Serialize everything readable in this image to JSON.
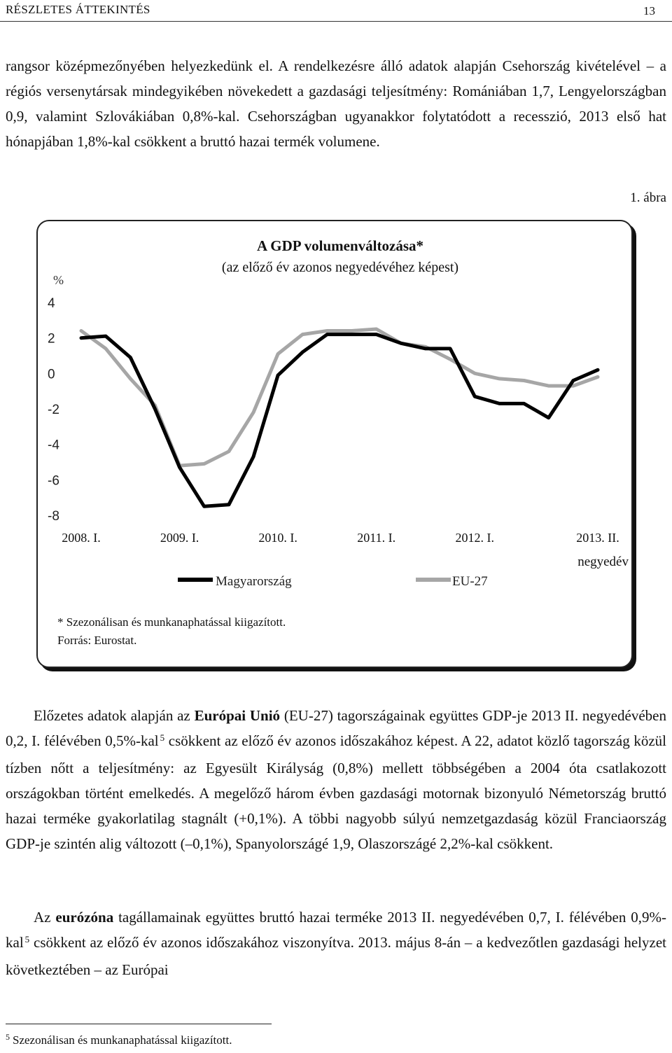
{
  "header": {
    "section": "RÉSZLETES ÁTTEKINTÉS",
    "page_number": "13"
  },
  "paragraph1": "rangsor középmezőnyében helyezkedünk el. A rendelkezésre álló adatok alapján Csehország kivételével – a régiós versenytársak mindegyikében növekedett a gazdasági teljesítmény: Romániában 1,7, Lengyelországban 0,9, valamint Szlovákiában 0,8%-kal. Csehországban ugyanakkor folytatódott a recesszió, 2013 első hat hónapjában 1,8%-kal csökkent a bruttó hazai termék volumene.",
  "figure_label": "1. ábra",
  "chart_data": {
    "type": "line",
    "title": "A GDP volumenváltozása*",
    "subtitle": "(az előző év azonos negyedévéhez képest)",
    "ylabel": "%",
    "xlabel": "negyedév",
    "ylim": [
      -8,
      4
    ],
    "yticks": [
      "4",
      "2",
      "0",
      "-2",
      "-4",
      "-6",
      "-8"
    ],
    "ytick_values": [
      4,
      2,
      0,
      -2,
      -4,
      -6,
      -8
    ],
    "x_tick_labels": [
      "2008. I.",
      "2009. I.",
      "2010. I.",
      "2011. I.",
      "2012. I.",
      "2013. II."
    ],
    "x_tick_indices": [
      0,
      4,
      8,
      12,
      16,
      21
    ],
    "n_points": 22,
    "series": [
      {
        "name": "Magyarország",
        "color": "#000000",
        "values": [
          2.0,
          2.1,
          0.9,
          -2.0,
          -5.3,
          -7.5,
          -7.4,
          -4.7,
          -0.1,
          1.2,
          2.2,
          2.2,
          2.2,
          1.7,
          1.4,
          1.4,
          -1.3,
          -1.7,
          -1.7,
          -2.5,
          -0.4,
          0.2
        ]
      },
      {
        "name": "EU-27",
        "color": "#a6a6a6",
        "values": [
          2.4,
          1.4,
          -0.3,
          -1.8,
          -5.2,
          -5.1,
          -4.4,
          -2.2,
          1.1,
          2.2,
          2.4,
          2.4,
          2.5,
          1.7,
          1.5,
          0.8,
          0.0,
          -0.3,
          -0.4,
          -0.7,
          -0.7,
          -0.2
        ]
      }
    ],
    "legend_position": "bottom",
    "notes": [
      "* Szezonálisan és munkanaphatással kiigazított.",
      "Forrás: Eurostat."
    ]
  },
  "paragraph2": {
    "part1": "Előzetes adatok alapján az ",
    "bold": "Európai Unió",
    "part2": " (EU-27) tagországainak együttes GDP-je 2013 II. negyedévében 0,2, I. félévében 0,5%-kal",
    "sup": "5",
    "part3": " csökkent az előző év azonos időszakához képest. A 22, adatot közlő tagország közül tízben nőtt a teljesítmény: az Egyesült Királyság (0,8%) mellett többségében a 2004 óta csatlakozott országokban történt emelkedés. A megelőző három évben gazdasági motornak bizonyuló Németország bruttó hazai terméke gyakorlatilag stagnált (+0,1%). A többi nagyobb súlyú nemzetgazdaság közül Franciaország GDP-je szintén alig változott (–0,1%), Spanyolországé 1,9, Olaszországé 2,2%-kal csökkent."
  },
  "paragraph3": {
    "part1": "Az ",
    "bold": "eurózóna",
    "part2": " tagállamainak együttes bruttó hazai terméke 2013 II. negyedévében 0,7, I. félévében 0,9%-kal",
    "sup": "5",
    "part3": " csökkent az előző év azonos időszakához viszonyítva. 2013. május 8-án – a kedvezőtlen gazdasági helyzet következtében – az Európai"
  },
  "footnote": {
    "mark": "5",
    "text": "Szezonálisan és munkanaphatással kiigazított."
  }
}
